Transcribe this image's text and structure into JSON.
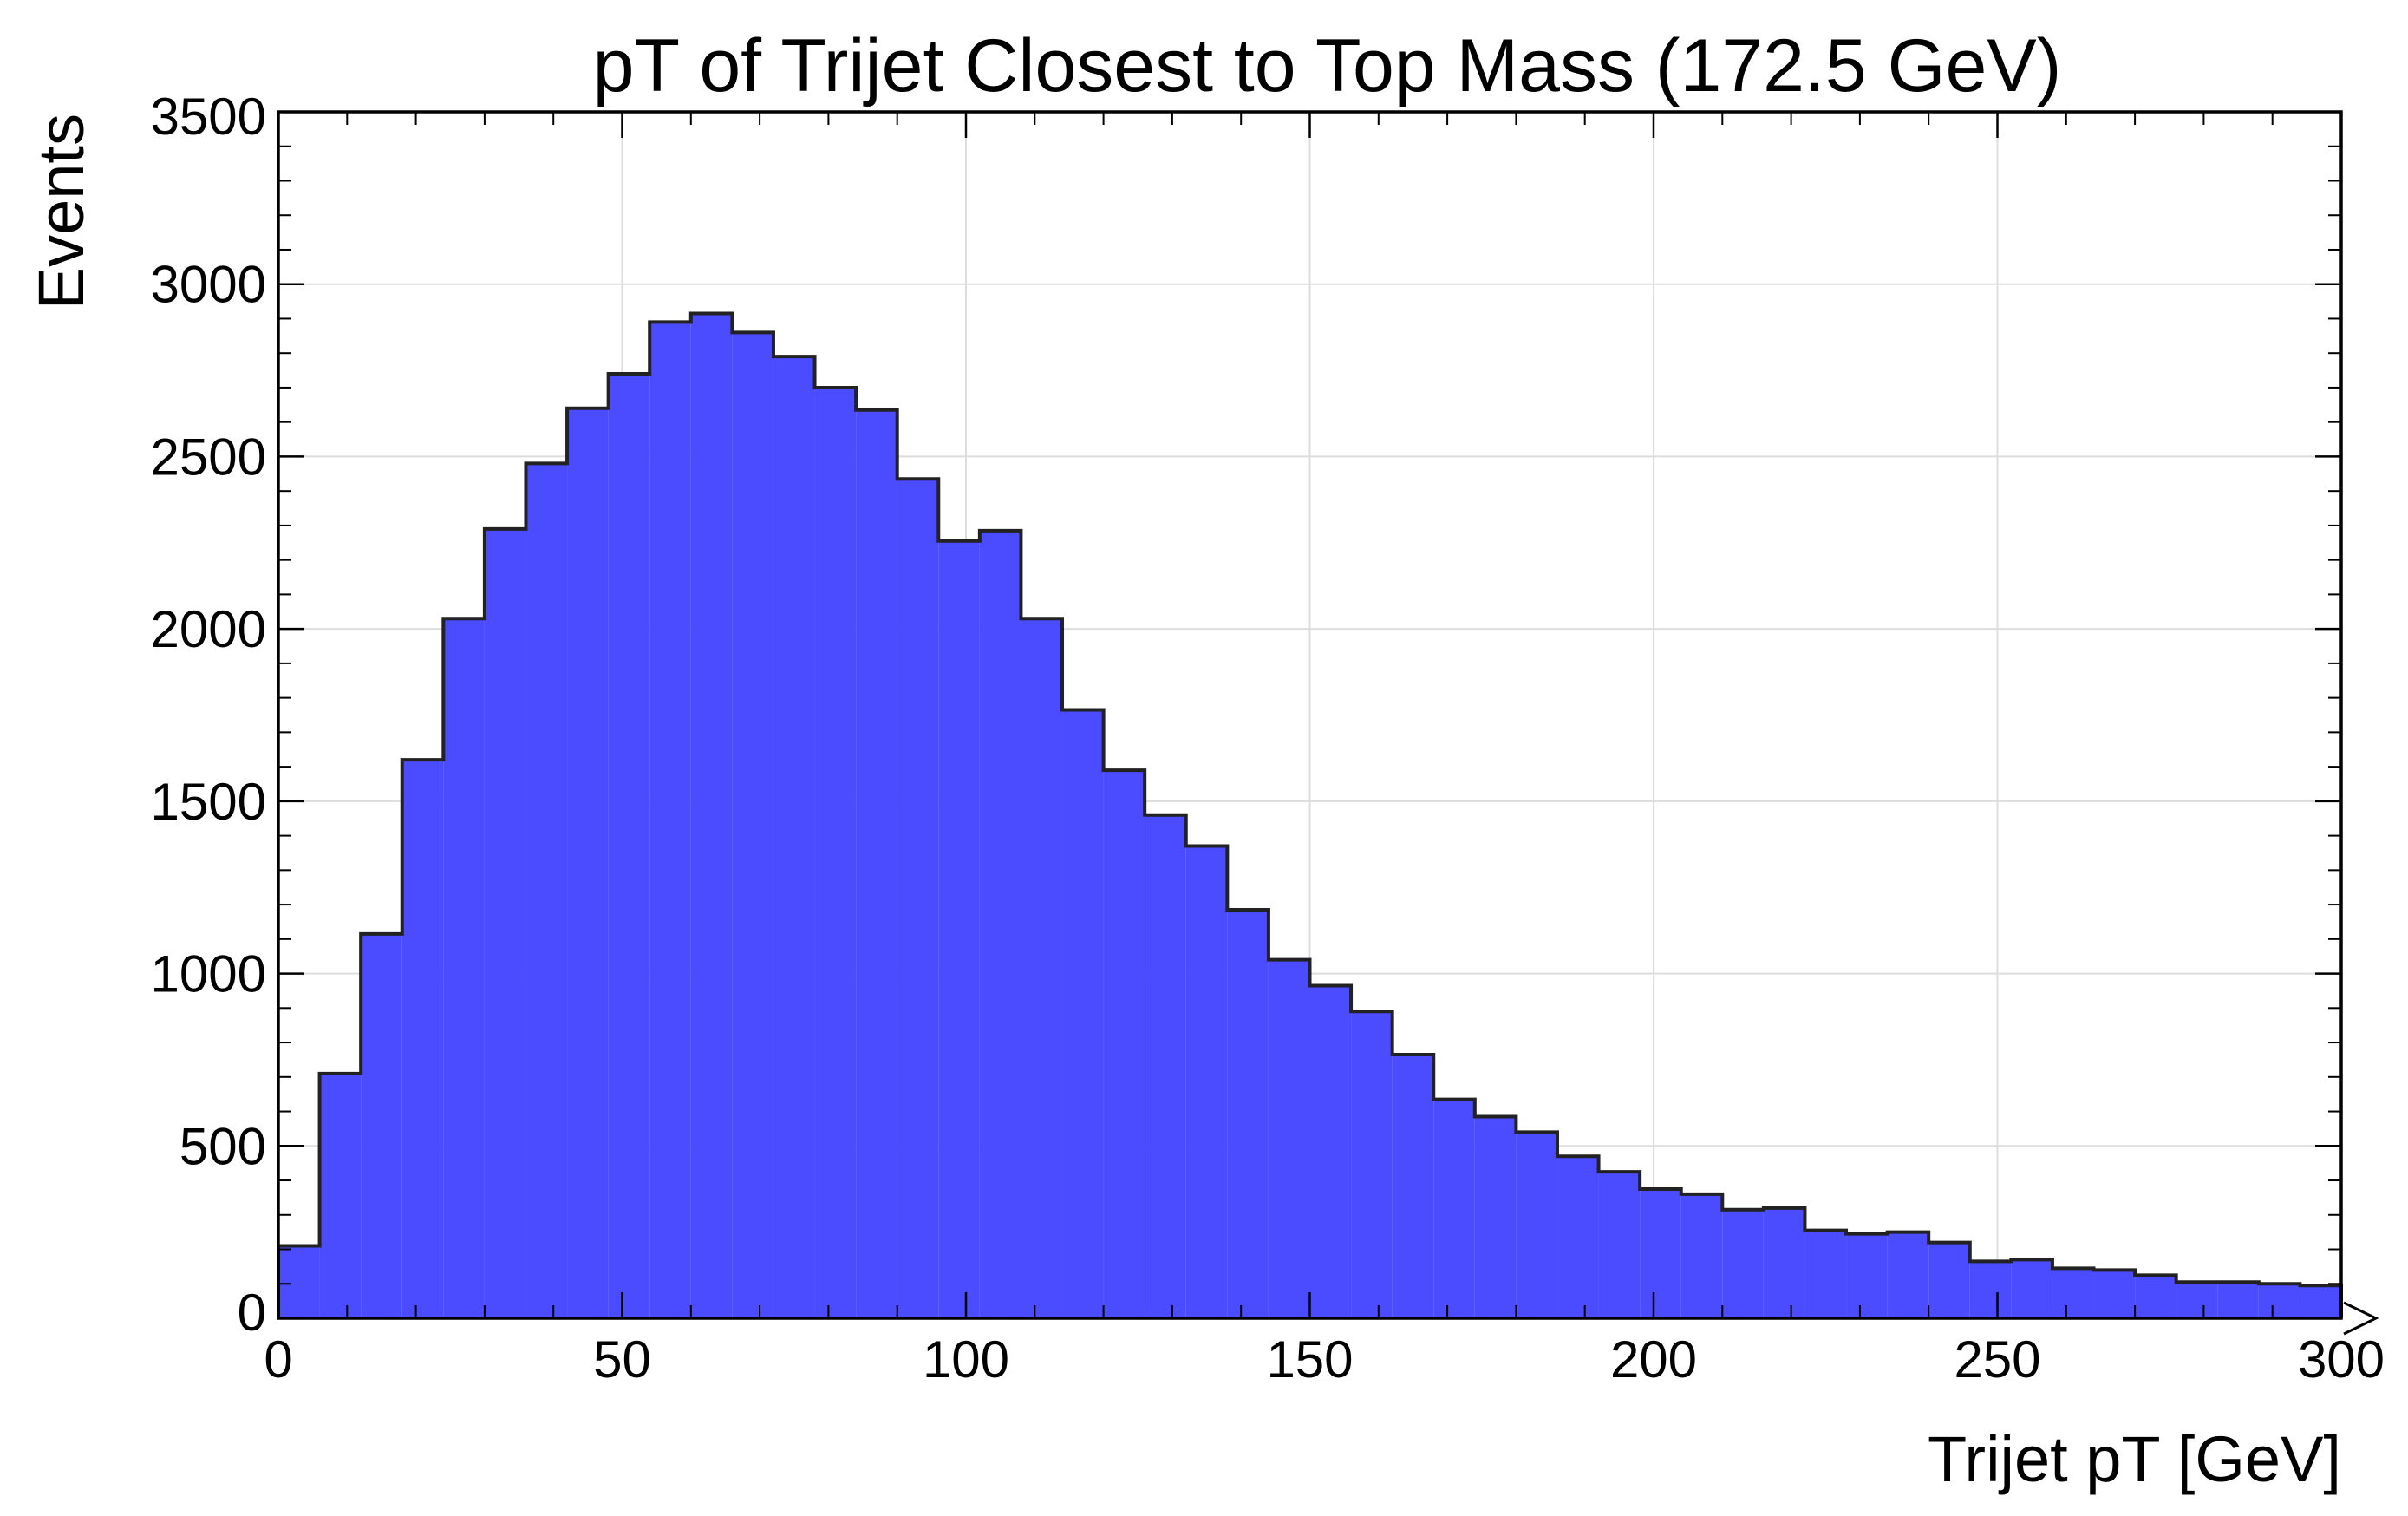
{
  "chart_data": {
    "type": "bar",
    "title": "pT of Trijet Closest to Top Mass (172.5 GeV)",
    "xlabel": "Trijet pT [GeV]",
    "ylabel": "Events",
    "xlim": [
      0,
      300
    ],
    "ylim": [
      0,
      3500
    ],
    "bin_width": 6,
    "bin_edges_start": 0,
    "values": [
      210,
      710,
      1115,
      1620,
      2030,
      2290,
      2480,
      2640,
      2740,
      2890,
      2915,
      2860,
      2790,
      2700,
      2635,
      2435,
      2255,
      2285,
      2030,
      1765,
      1590,
      1460,
      1370,
      1185,
      1040,
      965,
      890,
      765,
      635,
      585,
      540,
      470,
      425,
      375,
      360,
      315,
      320,
      255,
      245,
      250,
      220,
      165,
      170,
      145,
      140,
      125,
      105,
      105,
      100,
      95
    ],
    "x_ticks": [
      "0",
      "50",
      "100",
      "150",
      "200",
      "250",
      "300"
    ],
    "y_ticks": [
      "0",
      "500",
      "1000",
      "1500",
      "2000",
      "2500",
      "3000",
      "3500"
    ],
    "grid": true,
    "fill_color": "#4b4bff",
    "edge_color": "#222222",
    "grid_color": "#dddddd"
  }
}
